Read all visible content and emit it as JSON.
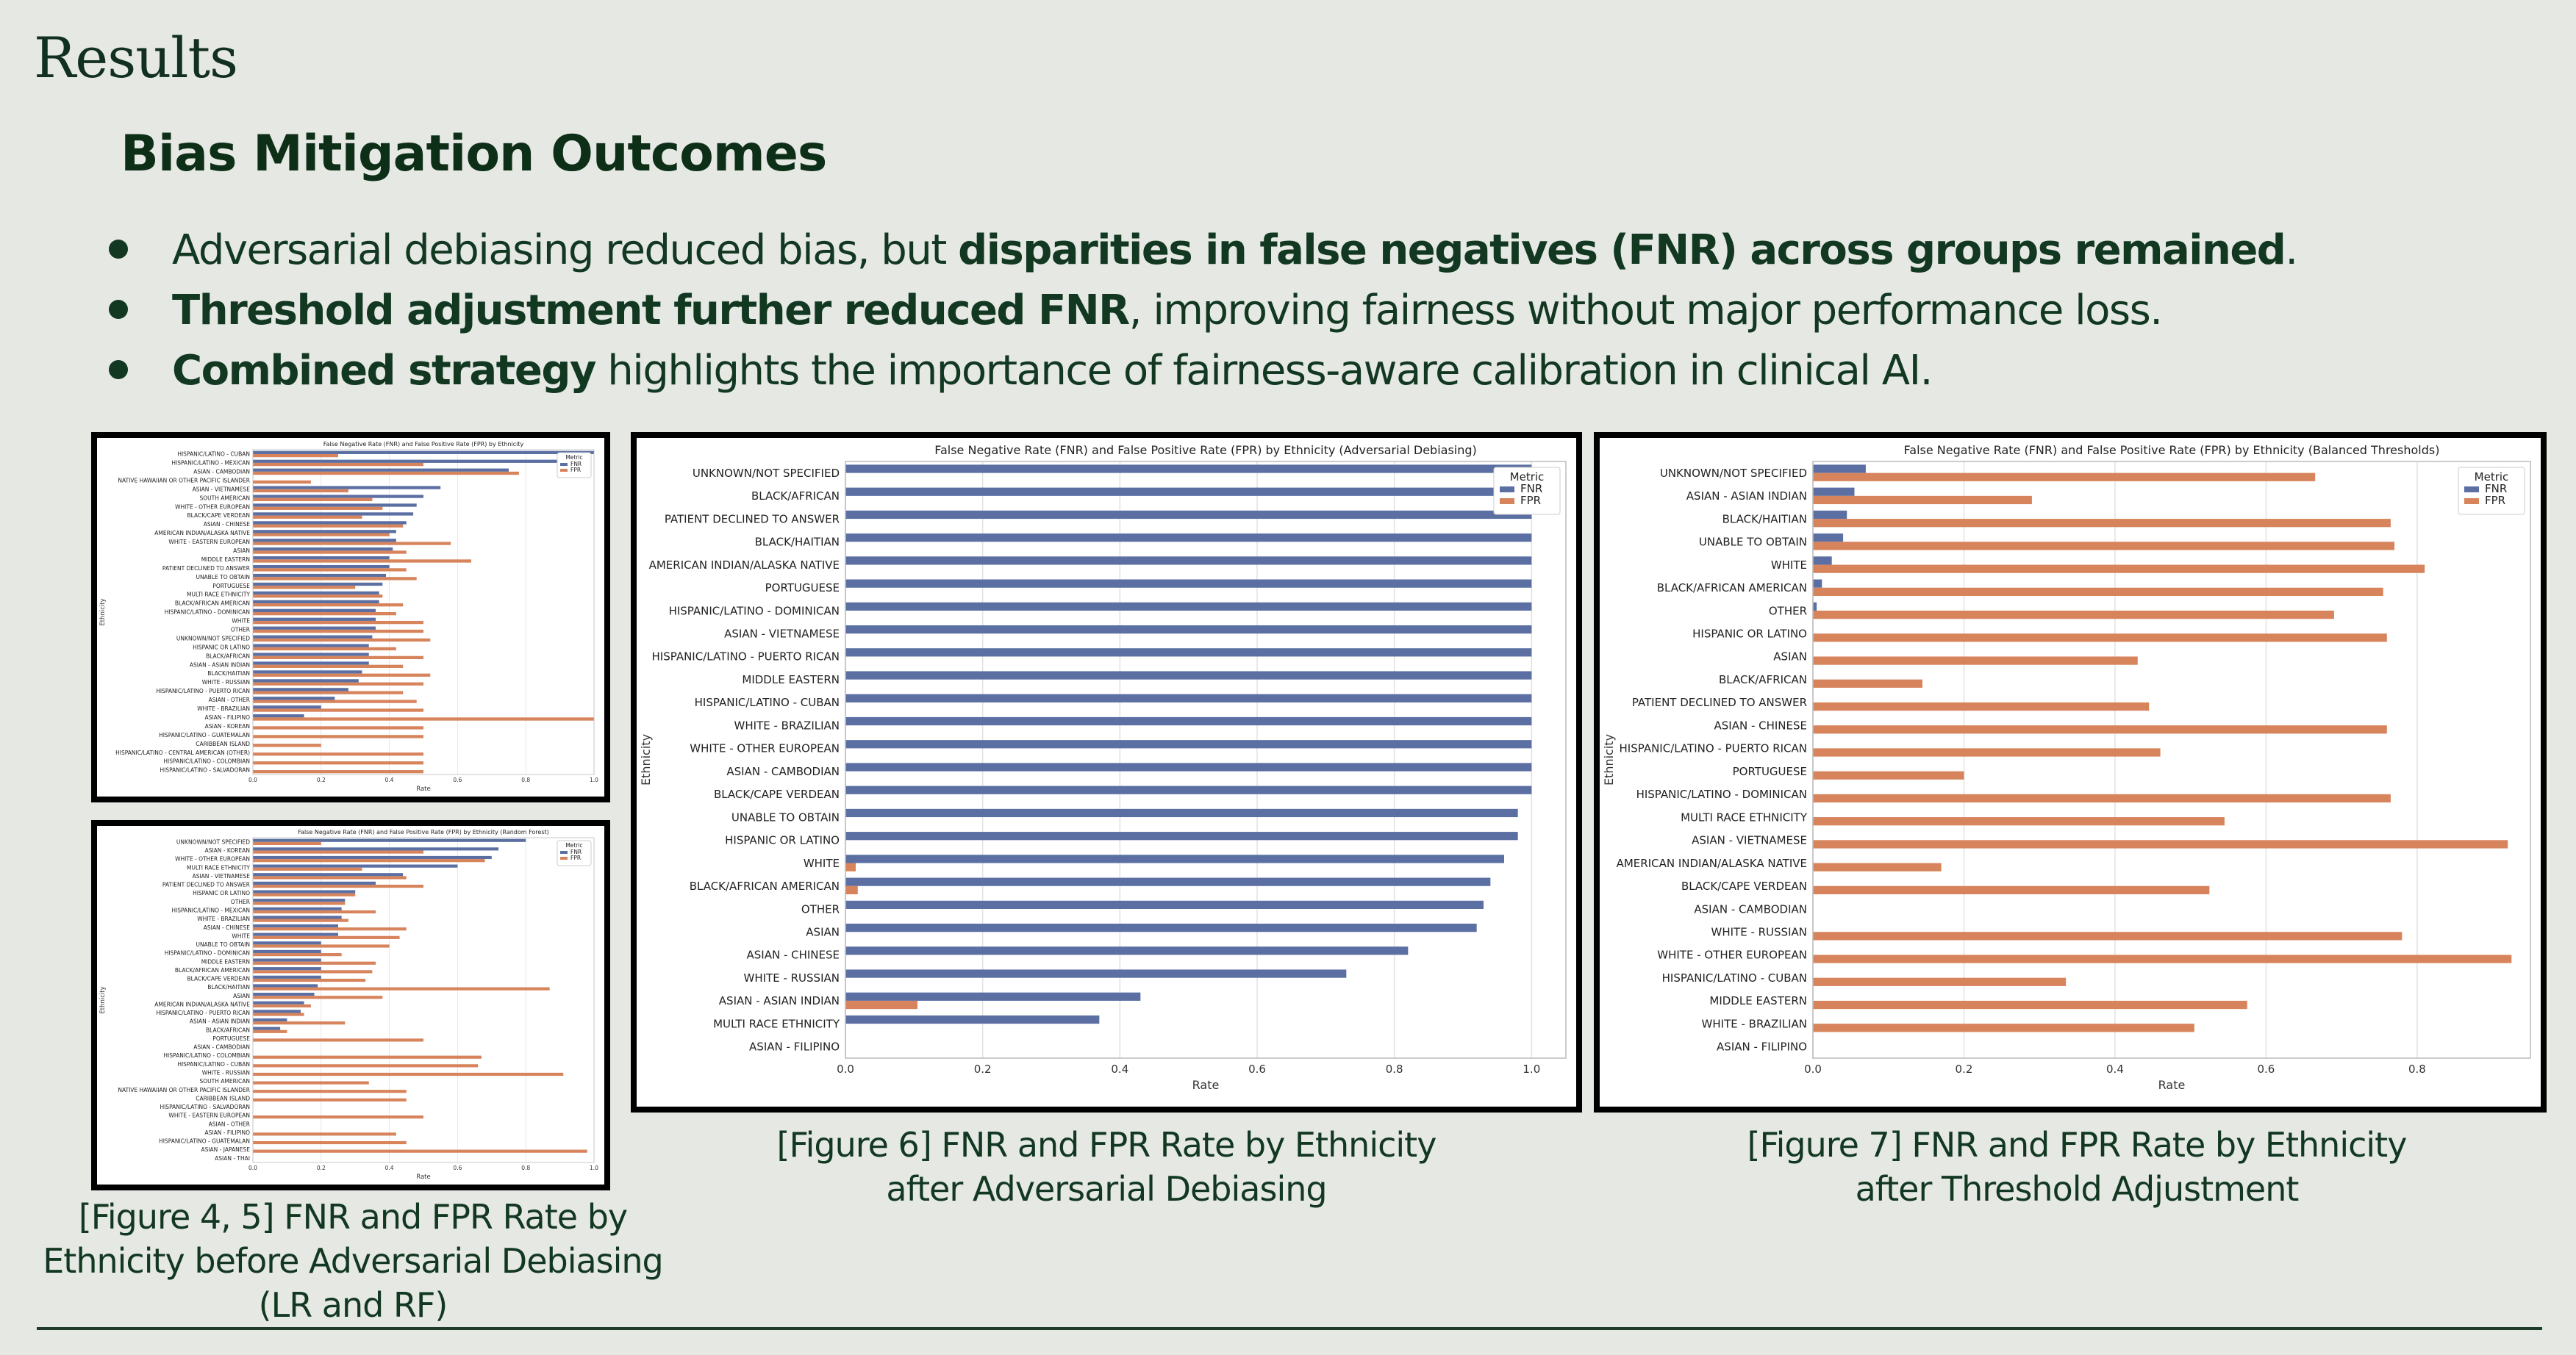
{
  "slide": {
    "title": "Results",
    "subtitle": "Bias Mitigation Outcomes",
    "bullets": [
      {
        "pre": "Adversarial debiasing reduced bias, but ",
        "bold": "disparities in false negatives (FNR) across groups remained",
        "post": "."
      },
      {
        "pre": "",
        "bold": "Threshold adjustment further reduced FNR",
        "post": ", improving fairness without major performance loss."
      },
      {
        "pre": "",
        "bold": "Combined strategy",
        "post": " highlights the importance of fairness-aware calibration in clinical AI."
      }
    ],
    "captions": {
      "fig45": [
        "[Figure 4, 5] FNR and FPR Rate by",
        "Ethnicity before Adversarial Debiasing",
        "(LR and RF)"
      ],
      "fig6": [
        "[Figure 6] FNR and FPR Rate by Ethnicity",
        "after Adversarial Debiasing"
      ],
      "fig7": [
        "[Figure 7] FNR and FPR Rate by Ethnicity",
        "after Threshold Adjustment"
      ]
    }
  },
  "colors": {
    "FNR": "#5b6fa3",
    "FPR": "#d7845c"
  },
  "chart_data": [
    {
      "id": "fig4",
      "type": "bar",
      "orientation": "horizontal",
      "title": "False Negative Rate (FNR) and False Positive Rate (FPR) by Ethnicity",
      "xlabel": "Rate",
      "ylabel": "Ethnicity",
      "xlim": [
        0,
        1.0
      ],
      "xticks": [
        "0.0",
        "0.2",
        "0.4",
        "0.6",
        "0.8",
        "1.0"
      ],
      "legend": {
        "title": "Metric",
        "position": "top-right",
        "entries": [
          "FNR",
          "FPR"
        ]
      },
      "categories": [
        "HISPANIC/LATINO - CUBAN",
        "HISPANIC/LATINO - MEXICAN",
        "ASIAN - CAMBODIAN",
        "NATIVE HAWAIIAN OR OTHER PACIFIC ISLANDER",
        "ASIAN - VIETNAMESE",
        "SOUTH AMERICAN",
        "WHITE - OTHER EUROPEAN",
        "BLACK/CAPE VERDEAN",
        "ASIAN - CHINESE",
        "AMERICAN INDIAN/ALASKA NATIVE",
        "WHITE - EASTERN EUROPEAN",
        "ASIAN",
        "MIDDLE EASTERN",
        "PATIENT DECLINED TO ANSWER",
        "UNABLE TO OBTAIN",
        "PORTUGUESE",
        "MULTI RACE ETHNICITY",
        "BLACK/AFRICAN AMERICAN",
        "HISPANIC/LATINO - DOMINICAN",
        "WHITE",
        "OTHER",
        "UNKNOWN/NOT SPECIFIED",
        "HISPANIC OR LATINO",
        "BLACK/AFRICAN",
        "ASIAN - ASIAN INDIAN",
        "BLACK/HAITIAN",
        "WHITE - RUSSIAN",
        "HISPANIC/LATINO - PUERTO RICAN",
        "ASIAN - OTHER",
        "WHITE - BRAZILIAN",
        "ASIAN - FILIPINO",
        "ASIAN - KOREAN",
        "HISPANIC/LATINO - GUATEMALAN",
        "CARIBBEAN ISLAND",
        "HISPANIC/LATINO - CENTRAL AMERICAN (OTHER)",
        "HISPANIC/LATINO - COLOMBIAN",
        "HISPANIC/LATINO - SALVADORAN"
      ],
      "series": [
        {
          "name": "FNR",
          "values": [
            1.0,
            0.98,
            0.75,
            0.0,
            0.55,
            0.5,
            0.48,
            0.47,
            0.45,
            0.42,
            0.42,
            0.41,
            0.4,
            0.4,
            0.39,
            0.38,
            0.37,
            0.37,
            0.36,
            0.36,
            0.36,
            0.35,
            0.34,
            0.34,
            0.34,
            0.32,
            0.31,
            0.28,
            0.24,
            0.2,
            0.15,
            0.0,
            0.0,
            0.0,
            0.0,
            0.0,
            0.0
          ]
        },
        {
          "name": "FPR",
          "values": [
            0.25,
            0.5,
            0.78,
            0.17,
            0.28,
            0.35,
            0.38,
            0.32,
            0.44,
            0.4,
            0.58,
            0.45,
            0.64,
            0.45,
            0.48,
            0.3,
            0.38,
            0.44,
            0.42,
            0.5,
            0.5,
            0.52,
            0.42,
            0.5,
            0.44,
            0.52,
            0.5,
            0.44,
            0.48,
            0.5,
            1.0,
            0.5,
            0.5,
            0.2,
            0.5,
            0.5,
            0.5
          ]
        }
      ]
    },
    {
      "id": "fig5",
      "type": "bar",
      "orientation": "horizontal",
      "title": "False Negative Rate (FNR) and False Positive Rate (FPR) by Ethnicity (Random Forest)",
      "xlabel": "Rate",
      "ylabel": "Ethnicity",
      "xlim": [
        0,
        1.0
      ],
      "xticks": [
        "0.0",
        "0.2",
        "0.4",
        "0.6",
        "0.8",
        "1.0"
      ],
      "legend": {
        "title": "Metric",
        "position": "top-right",
        "entries": [
          "FNR",
          "FPR"
        ]
      },
      "categories": [
        "UNKNOWN/NOT SPECIFIED",
        "ASIAN - KOREAN",
        "WHITE - OTHER EUROPEAN",
        "MULTI RACE ETHNICITY",
        "ASIAN - VIETNAMESE",
        "PATIENT DECLINED TO ANSWER",
        "HISPANIC OR LATINO",
        "OTHER",
        "HISPANIC/LATINO - MEXICAN",
        "WHITE - BRAZILIAN",
        "ASIAN - CHINESE",
        "WHITE",
        "UNABLE TO OBTAIN",
        "HISPANIC/LATINO - DOMINICAN",
        "MIDDLE EASTERN",
        "BLACK/AFRICAN AMERICAN",
        "BLACK/CAPE VERDEAN",
        "BLACK/HAITIAN",
        "ASIAN",
        "AMERICAN INDIAN/ALASKA NATIVE",
        "HISPANIC/LATINO - PUERTO RICAN",
        "ASIAN - ASIAN INDIAN",
        "BLACK/AFRICAN",
        "PORTUGUESE",
        "ASIAN - CAMBODIAN",
        "HISPANIC/LATINO - COLOMBIAN",
        "HISPANIC/LATINO - CUBAN",
        "WHITE - RUSSIAN",
        "SOUTH AMERICAN",
        "NATIVE HAWAIIAN OR OTHER PACIFIC ISLANDER",
        "CARIBBEAN ISLAND",
        "HISPANIC/LATINO - SALVADORAN",
        "WHITE - EASTERN EUROPEAN",
        "ASIAN - OTHER",
        "ASIAN - FILIPINO",
        "HISPANIC/LATINO - GUATEMALAN",
        "ASIAN - JAPANESE",
        "ASIAN - THAI"
      ],
      "series": [
        {
          "name": "FNR",
          "values": [
            0.8,
            0.72,
            0.7,
            0.6,
            0.44,
            0.36,
            0.3,
            0.27,
            0.26,
            0.26,
            0.25,
            0.25,
            0.2,
            0.2,
            0.2,
            0.2,
            0.2,
            0.19,
            0.18,
            0.15,
            0.14,
            0.1,
            0.08,
            0.0,
            0.0,
            0.0,
            0.0,
            0.0,
            0.0,
            0.0,
            0.0,
            0.0,
            0.0,
            0.0,
            0.0,
            0.0,
            0.0,
            0.0
          ]
        },
        {
          "name": "FPR",
          "values": [
            0.2,
            0.5,
            0.68,
            0.32,
            0.45,
            0.5,
            0.3,
            0.27,
            0.36,
            0.28,
            0.45,
            0.43,
            0.4,
            0.26,
            0.36,
            0.35,
            0.33,
            0.87,
            0.38,
            0.17,
            0.15,
            0.27,
            0.1,
            0.5,
            0.0,
            0.67,
            0.66,
            0.91,
            0.34,
            0.45,
            0.45,
            0.0,
            0.5,
            0.0,
            0.42,
            0.45,
            0.98,
            0.0
          ]
        }
      ]
    },
    {
      "id": "fig6",
      "type": "bar",
      "orientation": "horizontal",
      "title": "False Negative Rate (FNR) and False Positive Rate (FPR) by Ethnicity (Adversarial Debiasing)",
      "xlabel": "Rate",
      "ylabel": "Ethnicity",
      "xlim": [
        0,
        1.05
      ],
      "xticks": [
        "0.0",
        "0.2",
        "0.4",
        "0.6",
        "0.8",
        "1.0"
      ],
      "legend": {
        "title": "Metric",
        "position": "top-right",
        "entries": [
          "FNR",
          "FPR"
        ]
      },
      "categories": [
        "UNKNOWN/NOT SPECIFIED",
        "BLACK/AFRICAN",
        "PATIENT DECLINED TO ANSWER",
        "BLACK/HAITIAN",
        "AMERICAN INDIAN/ALASKA NATIVE",
        "PORTUGUESE",
        "HISPANIC/LATINO - DOMINICAN",
        "ASIAN - VIETNAMESE",
        "HISPANIC/LATINO - PUERTO RICAN",
        "MIDDLE EASTERN",
        "HISPANIC/LATINO - CUBAN",
        "WHITE - BRAZILIAN",
        "WHITE - OTHER EUROPEAN",
        "ASIAN - CAMBODIAN",
        "BLACK/CAPE VERDEAN",
        "UNABLE TO OBTAIN",
        "HISPANIC OR LATINO",
        "WHITE",
        "BLACK/AFRICAN AMERICAN",
        "OTHER",
        "ASIAN",
        "ASIAN - CHINESE",
        "WHITE - RUSSIAN",
        "ASIAN - ASIAN INDIAN",
        "MULTI RACE ETHNICITY",
        "ASIAN - FILIPINO"
      ],
      "series": [
        {
          "name": "FNR",
          "values": [
            1.0,
            1.0,
            1.0,
            1.0,
            1.0,
            1.0,
            1.0,
            1.0,
            1.0,
            1.0,
            1.0,
            1.0,
            1.0,
            1.0,
            1.0,
            0.98,
            0.98,
            0.96,
            0.94,
            0.93,
            0.92,
            0.82,
            0.73,
            0.43,
            0.37,
            0.0
          ]
        },
        {
          "name": "FPR",
          "values": [
            0.0,
            0.0,
            0.0,
            0.0,
            0.0,
            0.0,
            0.0,
            0.0,
            0.0,
            0.0,
            0.0,
            0.0,
            0.0,
            0.0,
            0.0,
            0.0,
            0.0,
            0.015,
            0.018,
            0.0,
            0.0,
            0.0,
            0.0,
            0.105,
            0.0,
            0.0
          ]
        }
      ]
    },
    {
      "id": "fig7",
      "type": "bar",
      "orientation": "horizontal",
      "title": "False Negative Rate (FNR) and False Positive Rate (FPR) by Ethnicity (Balanced Thresholds)",
      "xlabel": "Rate",
      "ylabel": "Ethnicity",
      "xlim": [
        0,
        0.95
      ],
      "xticks": [
        "0.0",
        "0.2",
        "0.4",
        "0.6",
        "0.8"
      ],
      "legend": {
        "title": "Metric",
        "position": "top-right",
        "entries": [
          "FNR",
          "FPR"
        ]
      },
      "categories": [
        "UNKNOWN/NOT SPECIFIED",
        "ASIAN - ASIAN INDIAN",
        "BLACK/HAITIAN",
        "UNABLE TO OBTAIN",
        "WHITE",
        "BLACK/AFRICAN AMERICAN",
        "OTHER",
        "HISPANIC OR LATINO",
        "ASIAN",
        "BLACK/AFRICAN",
        "PATIENT DECLINED TO ANSWER",
        "ASIAN - CHINESE",
        "HISPANIC/LATINO - PUERTO RICAN",
        "PORTUGUESE",
        "HISPANIC/LATINO - DOMINICAN",
        "MULTI RACE ETHNICITY",
        "ASIAN - VIETNAMESE",
        "AMERICAN INDIAN/ALASKA NATIVE",
        "BLACK/CAPE VERDEAN",
        "ASIAN - CAMBODIAN",
        "WHITE - RUSSIAN",
        "WHITE - OTHER EUROPEAN",
        "HISPANIC/LATINO - CUBAN",
        "MIDDLE EASTERN",
        "WHITE - BRAZILIAN",
        "ASIAN - FILIPINO"
      ],
      "series": [
        {
          "name": "FNR",
          "values": [
            0.07,
            0.055,
            0.045,
            0.04,
            0.025,
            0.012,
            0.005,
            0.0,
            0.0,
            0.0,
            0.0,
            0.0,
            0.0,
            0.0,
            0.0,
            0.0,
            0.0,
            0.0,
            0.0,
            0.0,
            0.0,
            0.0,
            0.0,
            0.0,
            0.0,
            0.0
          ]
        },
        {
          "name": "FPR",
          "values": [
            0.665,
            0.29,
            0.765,
            0.77,
            0.81,
            0.755,
            0.69,
            0.76,
            0.43,
            0.145,
            0.445,
            0.76,
            0.46,
            0.2,
            0.765,
            0.545,
            0.92,
            0.17,
            0.525,
            0.0,
            0.78,
            0.925,
            0.335,
            0.575,
            0.505,
            0.0
          ]
        }
      ]
    }
  ]
}
